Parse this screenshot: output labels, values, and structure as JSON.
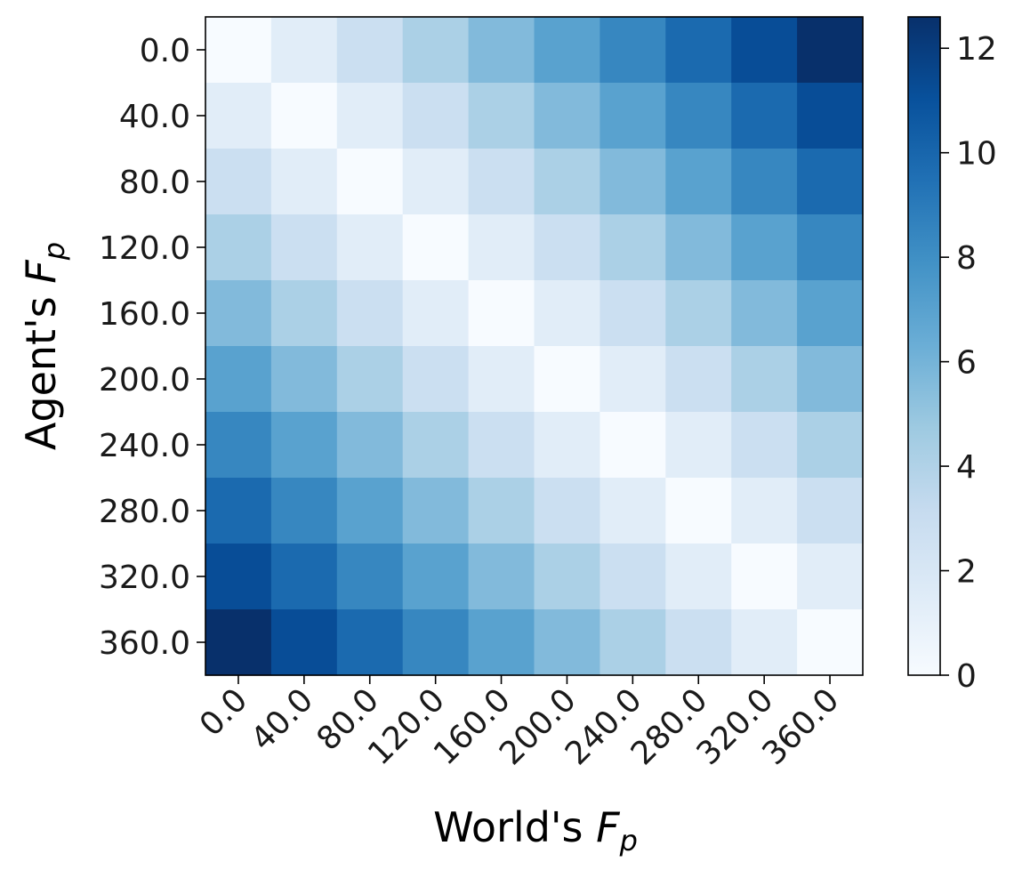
{
  "chart_data": {
    "type": "heatmap",
    "title": "",
    "xlabel": "World's F_p",
    "ylabel": "Agent's F_p",
    "xlabel_parts": {
      "prefix": "World's ",
      "var": "F",
      "sub": "p"
    },
    "ylabel_parts": {
      "prefix": "Agent's ",
      "var": "F",
      "sub": "p"
    },
    "x_categories": [
      "0.0",
      "40.0",
      "80.0",
      "120.0",
      "160.0",
      "200.0",
      "240.0",
      "280.0",
      "320.0",
      "360.0"
    ],
    "y_categories": [
      "0.0",
      "40.0",
      "80.0",
      "120.0",
      "160.0",
      "200.0",
      "240.0",
      "280.0",
      "320.0",
      "360.0"
    ],
    "values": [
      [
        0.0,
        1.4,
        2.8,
        4.2,
        5.6,
        7.0,
        8.4,
        9.8,
        11.2,
        12.6
      ],
      [
        1.4,
        0.0,
        1.4,
        2.8,
        4.2,
        5.6,
        7.0,
        8.4,
        9.8,
        11.2
      ],
      [
        2.8,
        1.4,
        0.0,
        1.4,
        2.8,
        4.2,
        5.6,
        7.0,
        8.4,
        9.8
      ],
      [
        4.2,
        2.8,
        1.4,
        0.0,
        1.4,
        2.8,
        4.2,
        5.6,
        7.0,
        8.4
      ],
      [
        5.6,
        4.2,
        2.8,
        1.4,
        0.0,
        1.4,
        2.8,
        4.2,
        5.6,
        7.0
      ],
      [
        7.0,
        5.6,
        4.2,
        2.8,
        1.4,
        0.0,
        1.4,
        2.8,
        4.2,
        5.6
      ],
      [
        8.4,
        7.0,
        5.6,
        4.2,
        2.8,
        1.4,
        0.0,
        1.4,
        2.8,
        4.2
      ],
      [
        9.8,
        8.4,
        7.0,
        5.6,
        4.2,
        2.8,
        1.4,
        0.0,
        1.4,
        2.8
      ],
      [
        11.2,
        9.8,
        8.4,
        7.0,
        5.6,
        4.2,
        2.8,
        1.4,
        0.0,
        1.4
      ],
      [
        12.6,
        11.2,
        9.8,
        8.4,
        7.0,
        5.6,
        4.2,
        2.8,
        1.4,
        0.0
      ]
    ],
    "colormap": "Blues",
    "colormap_stops": [
      "#f7fbff",
      "#deebf7",
      "#c6dbef",
      "#9ecae1",
      "#6baed6",
      "#4292c6",
      "#2171b5",
      "#08519c",
      "#08306b"
    ],
    "colorbar": {
      "range": [
        0,
        12.6
      ],
      "ticks": [
        0,
        2,
        4,
        6,
        8,
        10,
        12
      ],
      "tick_labels": [
        "0",
        "2",
        "4",
        "6",
        "8",
        "10",
        "12"
      ]
    },
    "grid": false,
    "legend": "colorbar-right"
  }
}
